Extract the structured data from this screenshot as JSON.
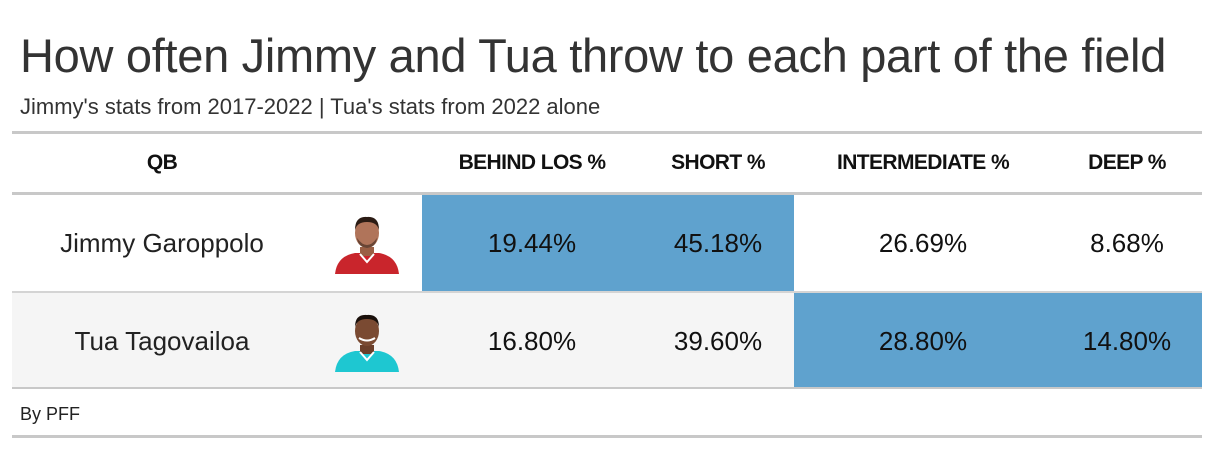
{
  "title": "How often Jimmy and Tua throw to each part of the field",
  "subtitle": "Jimmy's stats from 2017-2022 | Tua's stats from 2022 alone",
  "source": "By PFF",
  "colors": {
    "highlight": "#5fa2ce",
    "jimmy_jersey": "#c9252c",
    "tua_jersey": "#1ec7d1"
  },
  "chart_data": {
    "type": "table",
    "columns": [
      "QB",
      "BEHIND LOS %",
      "SHORT %",
      "INTERMEDIATE %",
      "DEEP %"
    ],
    "rows": [
      {
        "qb": "Jimmy Garoppolo",
        "avatar_icon": "player-headshot-icon",
        "values": [
          "19.44%",
          "45.18%",
          "26.69%",
          "8.68%"
        ],
        "highlighted": [
          true,
          true,
          false,
          false
        ]
      },
      {
        "qb": "Tua Tagovailoa",
        "avatar_icon": "player-headshot-icon",
        "values": [
          "16.80%",
          "39.60%",
          "28.80%",
          "14.80%"
        ],
        "highlighted": [
          false,
          false,
          true,
          true
        ]
      }
    ]
  }
}
